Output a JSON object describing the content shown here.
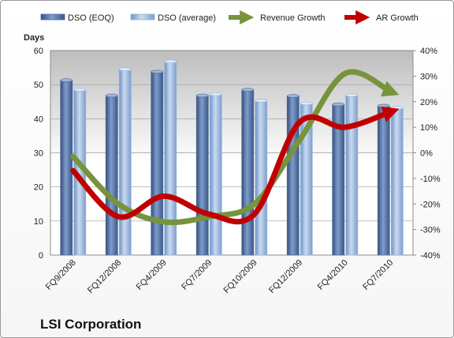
{
  "chart_data": {
    "type": "bar",
    "title": "LSI Corporation",
    "ylabel": "Days",
    "categories": [
      "FQ9/2008",
      "FQ12/2008",
      "FQ4/2009",
      "FQ7/2009",
      "FQ10/2009",
      "FQ12/2009",
      "FQ4/2010",
      "FQ7/2010"
    ],
    "ylim": [
      0,
      60
    ],
    "y_ticks": [
      "0",
      "10",
      "20",
      "30",
      "40",
      "50",
      "60"
    ],
    "y2lim": [
      -40,
      40
    ],
    "y2_ticks": [
      "-40%",
      "-30%",
      "-20%",
      "-10%",
      "0%",
      "10%",
      "20%",
      "30%",
      "40%"
    ],
    "legend_position": "top",
    "series": [
      {
        "name": "DSO (EOQ)",
        "kind": "bar",
        "color": "#4f6d9e",
        "values": [
          51.3,
          46.8,
          53.8,
          46.8,
          48.5,
          46.7,
          44.2,
          43.8
        ]
      },
      {
        "name": "DSO (average)",
        "kind": "bar",
        "color": "#95b4db",
        "values": [
          48.5,
          54.5,
          56.8,
          47.2,
          45.3,
          44.5,
          46.9,
          43.2
        ]
      },
      {
        "name": "Revenue Growth",
        "kind": "line",
        "axis": "right",
        "color": "#77933c",
        "values": [
          -1.5,
          -20,
          -27,
          -25,
          -20,
          5,
          31,
          24
        ]
      },
      {
        "name": "AR Growth",
        "kind": "line",
        "axis": "right",
        "color": "#c00000",
        "values": [
          -7,
          -25,
          -17,
          -24,
          -24,
          12,
          10,
          16
        ]
      }
    ]
  }
}
